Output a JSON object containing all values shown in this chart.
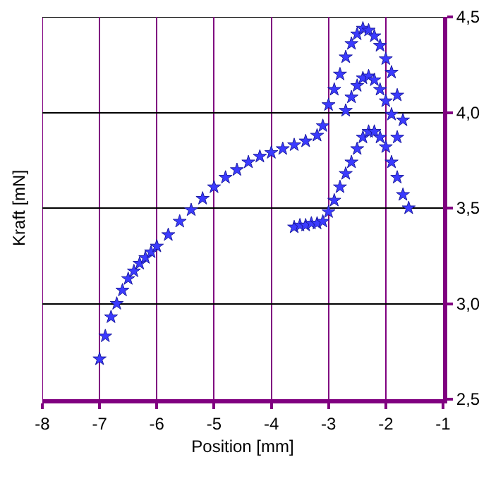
{
  "chart_data": {
    "type": "scatter",
    "xlabel": "Position [mm]",
    "ylabel": "Kraft [mN]",
    "xlim": [
      -8,
      -1
    ],
    "ylim": [
      2.5,
      4.5
    ],
    "xticks": [
      -8,
      -7,
      -6,
      -5,
      -4,
      -3,
      -2,
      -1
    ],
    "yticks": [
      {
        "value": 2.5,
        "label": "2,5"
      },
      {
        "value": 3.0,
        "label": "3,0"
      },
      {
        "value": 3.5,
        "label": "3,5"
      },
      {
        "value": 4.0,
        "label": "4,0"
      },
      {
        "value": 4.5,
        "label": "4,5"
      }
    ],
    "grid": true,
    "marker": "star",
    "series": [
      {
        "color": "#3b3bff",
        "x": [
          -7.0,
          -6.9,
          -6.8,
          -6.7,
          -6.6,
          -6.5,
          -6.4,
          -6.3,
          -6.2,
          -6.1,
          -6.0,
          -5.8,
          -5.6,
          -5.4,
          -5.2,
          -5.0,
          -4.8,
          -4.6,
          -4.4,
          -4.2,
          -4.0,
          -3.8,
          -3.6,
          -3.4,
          -3.2,
          -3.1,
          -3.0,
          -2.9,
          -2.8,
          -2.7,
          -2.6,
          -2.5,
          -2.4,
          -2.3,
          -2.2,
          -2.1,
          -2.0,
          -1.9,
          -1.8,
          -1.7
        ],
        "values": [
          2.71,
          2.83,
          2.93,
          3.0,
          3.07,
          3.13,
          3.17,
          3.21,
          3.24,
          3.27,
          3.3,
          3.36,
          3.43,
          3.49,
          3.55,
          3.61,
          3.66,
          3.7,
          3.74,
          3.77,
          3.79,
          3.81,
          3.83,
          3.85,
          3.88,
          3.93,
          4.04,
          4.12,
          4.2,
          4.29,
          4.36,
          4.41,
          4.44,
          4.43,
          4.4,
          4.35,
          4.28,
          4.21,
          4.09,
          3.96
        ]
      },
      {
        "color": "#3b3bff",
        "x": [
          -2.7,
          -2.6,
          -2.5,
          -2.4,
          -2.3,
          -2.2,
          -2.1,
          -2.0,
          -1.9,
          -1.8
        ],
        "values": [
          4.01,
          4.08,
          4.14,
          4.18,
          4.19,
          4.17,
          4.12,
          4.06,
          3.99,
          3.87
        ]
      },
      {
        "color": "#3b3bff",
        "x": [
          -3.6,
          -3.5,
          -3.4,
          -3.3,
          -3.2,
          -3.1,
          -3.0,
          -2.9,
          -2.8,
          -2.7,
          -2.6,
          -2.5,
          -2.4,
          -2.3,
          -2.2,
          -2.1,
          -2.0,
          -1.9,
          -1.8,
          -1.7,
          -1.6
        ],
        "values": [
          3.4,
          3.41,
          3.41,
          3.42,
          3.42,
          3.43,
          3.48,
          3.54,
          3.61,
          3.68,
          3.74,
          3.81,
          3.87,
          3.9,
          3.9,
          3.87,
          3.82,
          3.74,
          3.66,
          3.57,
          3.5
        ]
      }
    ]
  }
}
